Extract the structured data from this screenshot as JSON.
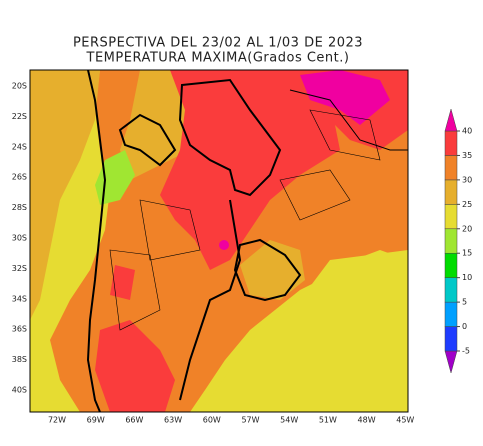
{
  "map": {
    "title": "PERSPECTIVA DEL 23/02 AL 1/03 DE 2023",
    "subtitle": "TEMPERATURA MAXIMA(Grados Cent.)",
    "lat_labels": [
      "20S",
      "22S",
      "24S",
      "26S",
      "28S",
      "30S",
      "32S",
      "34S",
      "36S",
      "38S",
      "40S"
    ],
    "lon_labels": [
      "72W",
      "69W",
      "66W",
      "63W",
      "60W",
      "57W",
      "54W",
      "51W",
      "48W",
      "45W"
    ],
    "colorbar": {
      "ticks": [
        -5,
        0,
        5,
        10,
        15,
        20,
        25,
        30,
        35,
        40
      ],
      "colors": [
        "#a000c8",
        "#1e3cff",
        "#00a0ff",
        "#00c8c8",
        "#00dc00",
        "#a0e632",
        "#e6dc32",
        "#e6af2d",
        "#f08228",
        "#fa3c3c",
        "#f000a0"
      ]
    }
  }
}
